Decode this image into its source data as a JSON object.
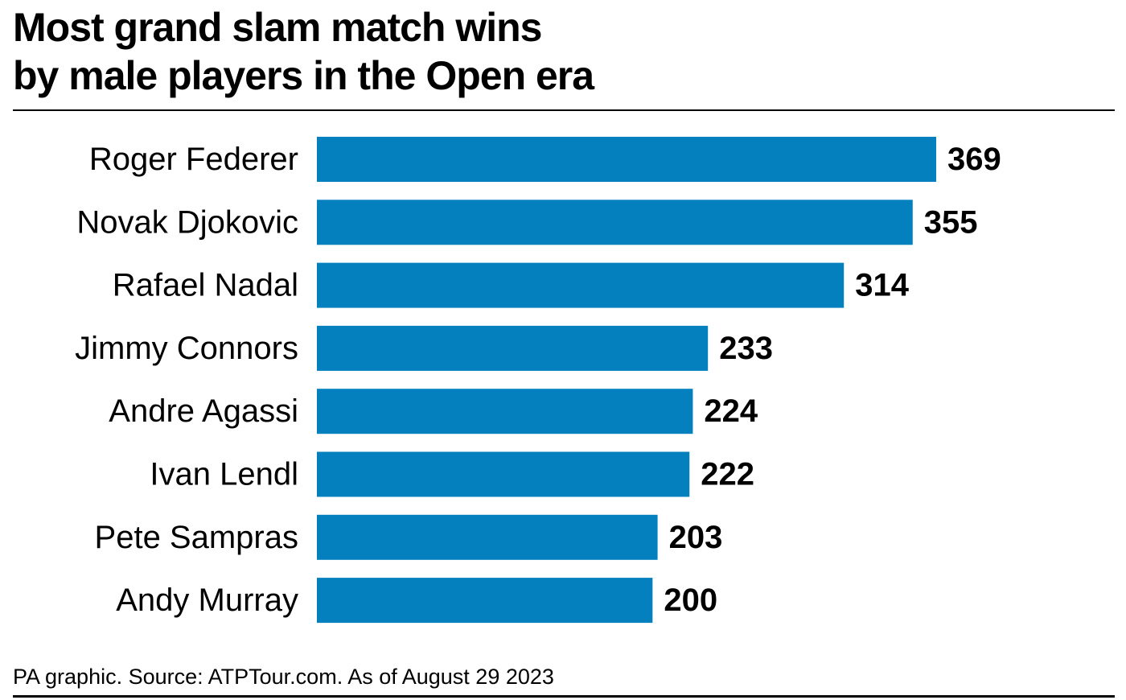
{
  "title_lines": [
    "Most grand slam match wins",
    "by male players in the Open era"
  ],
  "source": "PA graphic. Source: ATPTour.com. As of August 29 2023",
  "colors": {
    "bar": "#0480BE",
    "text": "#000000",
    "rule": "#000000"
  },
  "chart_data": {
    "type": "bar",
    "orientation": "horizontal",
    "title": "Most grand slam match wins by male players in the Open era",
    "categories": [
      "Roger Federer",
      "Novak Djokovic",
      "Rafael Nadal",
      "Jimmy Connors",
      "Andre Agassi",
      "Ivan Lendl",
      "Pete Sampras",
      "Andy Murray"
    ],
    "values": [
      369,
      355,
      314,
      233,
      224,
      222,
      203,
      200
    ],
    "xlabel": "",
    "ylabel": "",
    "grid": false,
    "legend": "none",
    "data_labels": true
  }
}
